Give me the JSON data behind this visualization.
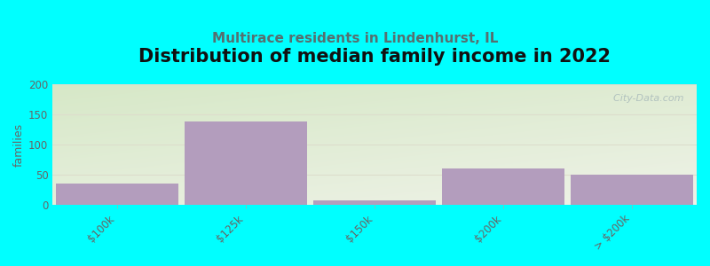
{
  "title": "Distribution of median family income in 2022",
  "subtitle": "Multirace residents in Lindenhurst, IL",
  "categories": [
    "$100k",
    "$125k",
    "$150k",
    "$200k",
    "> $200k"
  ],
  "values": [
    35,
    138,
    8,
    60,
    50
  ],
  "bar_color": "#b39dbd",
  "ylabel": "families",
  "ylim": [
    0,
    200
  ],
  "yticks": [
    0,
    50,
    100,
    150,
    200
  ],
  "bg_color": "#00ffff",
  "plot_bg_top_left": "#d6e8c8",
  "plot_bg_right": "#f0f0e8",
  "plot_bg_bottom": "#e8ece0",
  "grid_color": "#ddddcc",
  "title_fontsize": 15,
  "subtitle_fontsize": 11,
  "subtitle_color": "#557070",
  "tick_color": "#666666",
  "watermark": "  City-Data.com",
  "watermark_color": "#aabbbb"
}
